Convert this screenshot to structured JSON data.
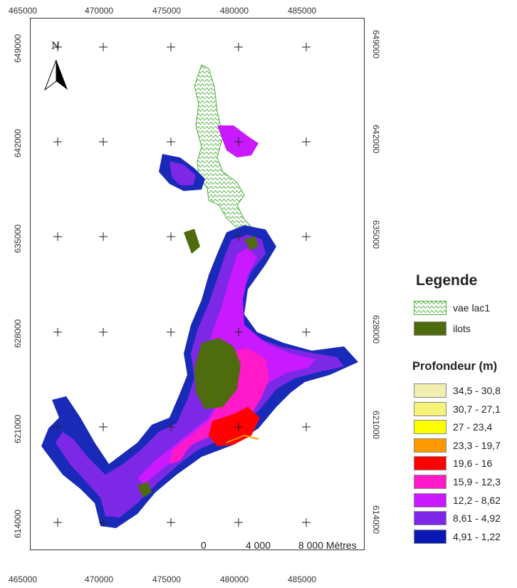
{
  "x_ticks": [
    "465000",
    "470000",
    "475000",
    "480000",
    "485000"
  ],
  "y_ticks": [
    "649000",
    "642000",
    "635000",
    "628000",
    "621000",
    "614000"
  ],
  "north_label": "N",
  "legend": {
    "title": "Legende",
    "items": [
      {
        "label": "vae lac1",
        "pattern": "hatch-green"
      },
      {
        "label": "ilots",
        "color": "#4e6b0e"
      }
    ],
    "depth_title": "Profondeur (m)",
    "depth_classes": [
      {
        "label": "34,5 - 30,8",
        "color": "#f2eeb0"
      },
      {
        "label": "30,7 - 27,1",
        "color": "#f7f278"
      },
      {
        "label": "27 - 23,4",
        "color": "#ffff00"
      },
      {
        "label": "23,3 - 19,7",
        "color": "#ff9900"
      },
      {
        "label": "19,6 - 16",
        "color": "#ff0000"
      },
      {
        "label": "15,9 - 12,3",
        "color": "#ff19c8"
      },
      {
        "label": "12,2 - 8,62",
        "color": "#c819ff"
      },
      {
        "label": "8,61 - 4,92",
        "color": "#7d28e6"
      },
      {
        "label": "4,91 - 1,22",
        "color": "#0a19b4"
      }
    ]
  },
  "scale_bar": {
    "labels": [
      "0",
      "4 000",
      "8 000 Mètres"
    ]
  }
}
